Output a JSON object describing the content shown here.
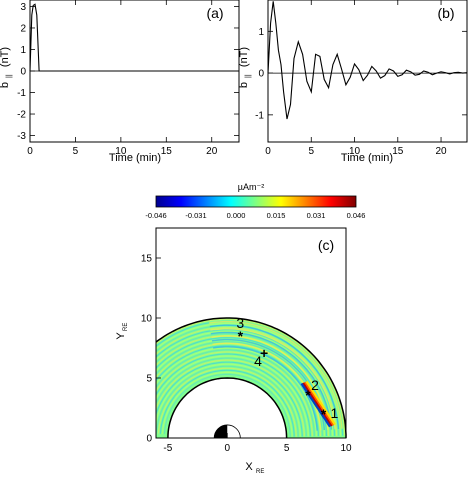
{
  "chart_data": [
    {
      "panel": "(a)",
      "type": "line",
      "xlabel": "Time (min)",
      "ylabel": "b",
      "ylabel_sub": "||",
      "ylabel_unit": "(nT)",
      "xlim": [
        0,
        23
      ],
      "ylim": [
        -3.3,
        3.3
      ],
      "xticks": [
        0,
        5,
        10,
        15,
        20
      ],
      "yticks": [
        -3,
        -2,
        -1,
        0,
        1,
        2,
        3
      ],
      "grid": false,
      "series": [
        {
          "x": [
            0,
            0.2,
            0.35,
            0.55,
            0.75,
            1.0,
            23
          ],
          "y": [
            0,
            2.6,
            3.05,
            3.1,
            2.6,
            0,
            0
          ]
        }
      ]
    },
    {
      "panel": "(b)",
      "type": "line",
      "xlabel": "Time (min)",
      "ylabel": "b",
      "ylabel_sub": "||",
      "ylabel_unit": "(nT)",
      "xlim": [
        0,
        23
      ],
      "ylim": [
        -1.65,
        1.75
      ],
      "xticks": [
        0,
        5,
        10,
        15,
        20
      ],
      "yticks": [
        -1,
        0,
        1
      ],
      "grid": false,
      "series": [
        {
          "x": [
            0,
            0.3,
            0.6,
            0.9,
            1.2,
            1.5,
            1.8,
            2.2,
            2.6,
            3.0,
            3.5,
            4.0,
            4.5,
            5.0,
            5.5,
            6.0,
            6.5,
            7.0,
            7.5,
            8.0,
            8.5,
            9.0,
            9.5,
            10.0,
            10.5,
            11.0,
            11.5,
            12.0,
            12.5,
            13.0,
            13.5,
            14.0,
            14.5,
            15.0,
            15.5,
            16.0,
            16.5,
            17.0,
            17.5,
            18.0,
            18.5,
            19.0,
            19.5,
            20.0,
            20.5,
            21.0,
            21.5,
            22.0,
            22.5,
            23.0
          ],
          "y": [
            0,
            1.2,
            1.72,
            1.2,
            0.55,
            0.2,
            -0.45,
            -1.1,
            -0.75,
            0.35,
            0.75,
            0.45,
            -0.2,
            -0.45,
            0.45,
            0.4,
            -0.15,
            -0.35,
            0.2,
            0.45,
            0.1,
            -0.28,
            -0.1,
            0.22,
            0.08,
            -0.18,
            -0.05,
            0.16,
            0.05,
            -0.12,
            -0.06,
            0.1,
            0.05,
            -0.08,
            -0.04,
            0.07,
            0.03,
            -0.05,
            -0.03,
            0.05,
            0.02,
            -0.04,
            0.0,
            0.03,
            0.01,
            -0.02,
            0.01,
            0.02,
            0.0,
            0.01
          ]
        }
      ]
    },
    {
      "panel": "(c)",
      "type": "heatmap",
      "colorbar_unit": "µAm⁻²",
      "colorbar_ticks": [
        "-0.046",
        "-0.031",
        "0.000",
        "0.015",
        "0.031",
        "0.046"
      ],
      "colorbar_colors": [
        "#00008f",
        "#0000ff",
        "#0080ff",
        "#00ffff",
        "#80ff80",
        "#ffff00",
        "#ff8000",
        "#ff0000",
        "#800000"
      ],
      "xlabel": "X",
      "xlabel_sub": "RE",
      "ylabel": "Y",
      "ylabel_sub": "RE",
      "xlim": [
        -6,
        10
      ],
      "ylim": [
        0,
        17.5
      ],
      "xticks": [
        -5,
        0,
        5,
        10
      ],
      "yticks": [
        0,
        5,
        10,
        15
      ],
      "inner_boundary_radius": 5,
      "outer_boundary_radius": 10,
      "field_color": "#80ff90",
      "markers": [
        {
          "label": "1",
          "symbol": "*",
          "x": 8.1,
          "y": 2.0
        },
        {
          "label": "2",
          "symbol": "*",
          "x": 6.8,
          "y": 3.6
        },
        {
          "label": "3",
          "symbol": "*",
          "x": 1.1,
          "y": 8.5
        },
        {
          "label": "4",
          "symbol": "+",
          "x": 3.1,
          "y": 7.1
        }
      ]
    }
  ]
}
